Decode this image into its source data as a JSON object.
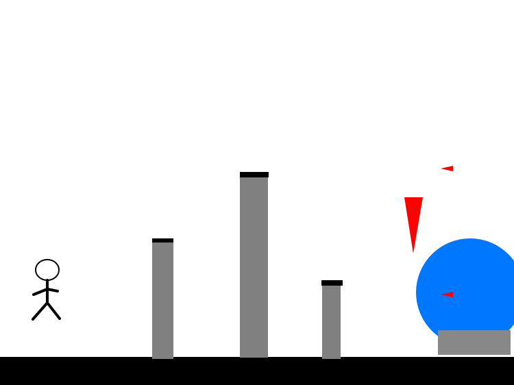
{
  "game": {
    "colors": {
      "background": "#ffffff",
      "ground": "#000000",
      "pillar": "#808080",
      "pillar_cap": "#000000",
      "hazard": "#ff0000",
      "orb": "#0077ff",
      "block": "#888888",
      "player": "#000000"
    },
    "entities": [
      "player-stick-figure",
      "pillar",
      "pillar",
      "pillar",
      "spike-hazard",
      "arrow-projectile",
      "arrow-projectile",
      "blue-orb",
      "gray-block",
      "ground"
    ]
  }
}
